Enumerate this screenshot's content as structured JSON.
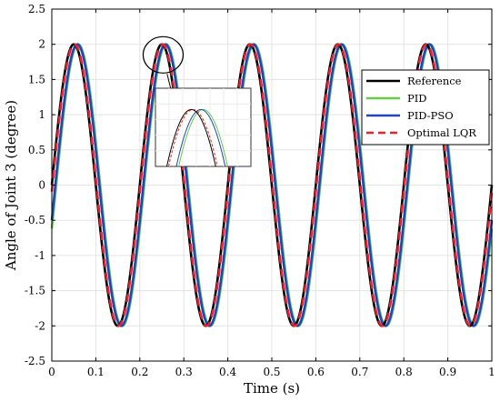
{
  "chart_data": {
    "type": "line",
    "xlabel": "Time (s)",
    "ylabel": "Angle of Joint 3 (degree)",
    "xlim": [
      0,
      1
    ],
    "ylim": [
      -2.5,
      2.5
    ],
    "xticks": [
      0,
      0.1,
      0.2,
      0.3,
      0.4,
      0.5,
      0.6,
      0.7,
      0.8,
      0.9,
      1
    ],
    "yticks": [
      -2.5,
      -2,
      -1.5,
      -1,
      -0.5,
      0,
      0.5,
      1,
      1.5,
      2,
      2.5
    ],
    "xtick_labels": [
      "0",
      "0.1",
      "0.2",
      "0.3",
      "0.4",
      "0.5",
      "0.6",
      "0.7",
      "0.8",
      "0.9",
      "1"
    ],
    "ytick_labels": [
      "-2.5",
      "-2",
      "-1.5",
      "-1",
      "-0.5",
      "0",
      "0.5",
      "1",
      "1.5",
      "2",
      "2.5"
    ],
    "grid": true,
    "legend_position": "right",
    "signal": {
      "amplitude": 2,
      "frequency_hz": 5
    },
    "series": [
      {
        "name": "Reference",
        "color": "#000000",
        "dash": "solid",
        "phase_lag_s": 0.0
      },
      {
        "name": "PID",
        "color": "#66cc44",
        "dash": "solid",
        "phase_lag_s": 0.01
      },
      {
        "name": "PID-PSO",
        "color": "#2244bb",
        "dash": "solid",
        "phase_lag_s": 0.008
      },
      {
        "name": "Optimal LQR",
        "color": "#e8212b",
        "dash": "dashed",
        "phase_lag_s": 0.0015
      }
    ],
    "inset": {
      "type": "line",
      "description_target": "zoom of peak near t = 0.25 s",
      "xlim": [
        0.22,
        0.3
      ],
      "ylim": [
        1.6,
        2.15
      ]
    }
  }
}
